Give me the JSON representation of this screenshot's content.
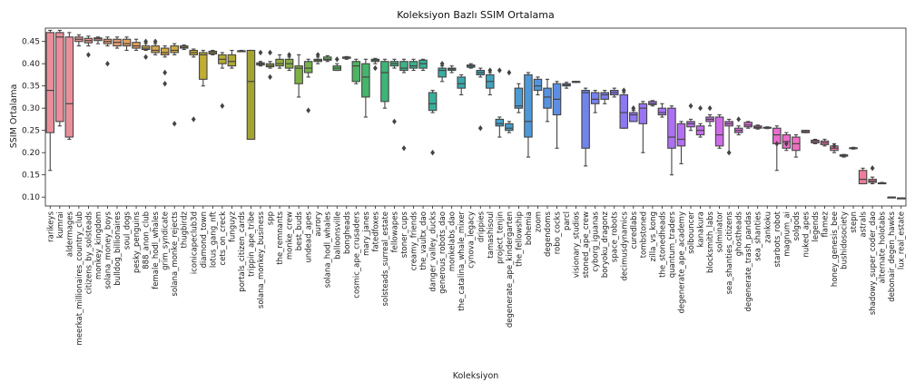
{
  "chart_data": {
    "type": "box",
    "title": "Koleksiyon Bazlı SSIM Ortalama",
    "xlabel": "Koleksiyon",
    "ylabel": "SSIM Ortalama",
    "ylim": [
      0.08,
      0.48
    ],
    "yticks": [
      0.1,
      0.15,
      0.2,
      0.25,
      0.3,
      0.35,
      0.4,
      0.45
    ],
    "ytick_labels": [
      "0.10",
      "0.15",
      "0.20",
      "0.25",
      "0.30",
      "0.35",
      "0.40",
      "0.45"
    ],
    "grid": false,
    "categories": [
      "rarikeys",
      "kumrai",
      "aldermages",
      "meerkat_millionaires_country_club",
      "citizens_by_solsteads",
      "monkey_kingdom",
      "solana_money_boys",
      "bulldog_billionaires",
      "soul_dogs",
      "pesky_penguins",
      "888_anon_club",
      "female_hodl_whales",
      "grim_syndicate",
      "solana_monke_rejects",
      "thugbirdz",
      "iconicapeclub3d",
      "diamond_town",
      "lotus_gang_nft",
      "cets_on_creck",
      "funguyz",
      "portals_citizen_cards",
      "trippin_ape_tribe",
      "solana_monkey_business",
      "spp",
      "the_remnants",
      "monke_crew",
      "best_buds",
      "undead_apes",
      "aurory",
      "solana_hodl_whales",
      "balloonsville",
      "bongheads",
      "cosmic_ape_crusaders",
      "mary_janes",
      "fatedfoxes",
      "solsteads_surreal_estate",
      "fellowapes",
      "stoner_cups",
      "creamy_friends",
      "the_vaultx_dao",
      "danger_valley_ducks",
      "generous_robots_dao",
      "monkelabs_dao",
      "the_catalina_whale_mixer",
      "cynova_legacy",
      "drippies",
      "tamashisoul",
      "project_tenjin",
      "degenerate_ape_kindergarten",
      "the_fellowship",
      "bohemia",
      "zoom",
      "degendoms",
      "robo_cocks",
      "parcl",
      "visionary_studios",
      "stoned_ape_crew",
      "cyborg_iguanas",
      "boryoku_dragonz",
      "space_robots",
      "decimusdynamics",
      "curedlabs",
      "tombstoned",
      "zilla_vs_kong",
      "the_stonedheads",
      "quantum_traders",
      "degenerate_ape_academy",
      "solbouncer",
      "kanakura",
      "blocksmith_labs",
      "solminator",
      "sea_shanties_citizens",
      "ghostheads",
      "degenerate_trash_pandas",
      "sea_shanties",
      "zankoku",
      "starbots_robot",
      "magnum_ai",
      "solgods",
      "nuked_apes",
      "legends",
      "flamez",
      "honey_genesis_bee",
      "bushidosociety",
      "stepn",
      "astrals",
      "shadowy_super_coder_dao",
      "alternate_holotabs",
      "debonair_degen_hawks",
      "lux_real_estate"
    ],
    "boxes": [
      {
        "min": 0.16,
        "q1": 0.245,
        "median": 0.34,
        "q3": 0.47,
        "max": 0.475,
        "outliers": [],
        "color": "#ea8f9a"
      },
      {
        "min": 0.26,
        "q1": 0.27,
        "median": 0.46,
        "q3": 0.47,
        "max": 0.475,
        "outliers": [],
        "color": "#ea8f9a"
      },
      {
        "min": 0.23,
        "q1": 0.235,
        "median": 0.31,
        "q3": 0.46,
        "max": 0.47,
        "outliers": [],
        "color": "#ea8f9a"
      },
      {
        "min": 0.44,
        "q1": 0.45,
        "median": 0.455,
        "q3": 0.46,
        "max": 0.465,
        "outliers": [],
        "color": "#ec9688"
      },
      {
        "min": 0.44,
        "q1": 0.447,
        "median": 0.452,
        "q3": 0.457,
        "max": 0.462,
        "outliers": [
          0.42
        ],
        "color": "#ec9688"
      },
      {
        "min": 0.445,
        "q1": 0.452,
        "median": 0.456,
        "q3": 0.458,
        "max": 0.46,
        "outliers": [],
        "color": "#ec9688"
      },
      {
        "min": 0.44,
        "q1": 0.445,
        "median": 0.45,
        "q3": 0.455,
        "max": 0.46,
        "outliers": [
          0.4
        ],
        "color": "#e89a6e"
      },
      {
        "min": 0.435,
        "q1": 0.44,
        "median": 0.448,
        "q3": 0.455,
        "max": 0.46,
        "outliers": [],
        "color": "#e89a6e"
      },
      {
        "min": 0.43,
        "q1": 0.44,
        "median": 0.445,
        "q3": 0.455,
        "max": 0.46,
        "outliers": [],
        "color": "#e3a15c"
      },
      {
        "min": 0.43,
        "q1": 0.435,
        "median": 0.44,
        "q3": 0.448,
        "max": 0.455,
        "outliers": [],
        "color": "#e3a15c"
      },
      {
        "min": 0.43,
        "q1": 0.432,
        "median": 0.435,
        "q3": 0.44,
        "max": 0.445,
        "outliers": [
          0.45,
          0.415
        ],
        "color": "#d9a64b"
      },
      {
        "min": 0.42,
        "q1": 0.425,
        "median": 0.43,
        "q3": 0.44,
        "max": 0.445,
        "outliers": [
          0.45
        ],
        "color": "#d9a64b"
      },
      {
        "min": 0.415,
        "q1": 0.42,
        "median": 0.425,
        "q3": 0.435,
        "max": 0.44,
        "outliers": [
          0.355,
          0.38
        ],
        "color": "#d4a940"
      },
      {
        "min": 0.42,
        "q1": 0.425,
        "median": 0.43,
        "q3": 0.44,
        "max": 0.445,
        "outliers": [
          0.265
        ],
        "color": "#d4a940"
      },
      {
        "min": 0.432,
        "q1": 0.435,
        "median": 0.437,
        "q3": 0.44,
        "max": 0.442,
        "outliers": [],
        "color": "#cdab38"
      },
      {
        "min": 0.415,
        "q1": 0.42,
        "median": 0.425,
        "q3": 0.43,
        "max": 0.433,
        "outliers": [
          0.275
        ],
        "color": "#c8ac34"
      },
      {
        "min": 0.35,
        "q1": 0.365,
        "median": 0.42,
        "q3": 0.425,
        "max": 0.43,
        "outliers": [],
        "color": "#c2ad33"
      },
      {
        "min": 0.42,
        "q1": 0.422,
        "median": 0.425,
        "q3": 0.428,
        "max": 0.43,
        "outliers": [],
        "color": "#bcad32"
      },
      {
        "min": 0.39,
        "q1": 0.4,
        "median": 0.41,
        "q3": 0.42,
        "max": 0.425,
        "outliers": [
          0.305
        ],
        "color": "#b5ac31"
      },
      {
        "min": 0.39,
        "q1": 0.395,
        "median": 0.405,
        "q3": 0.42,
        "max": 0.43,
        "outliers": [],
        "color": "#adaa31"
      },
      {
        "min": 0.428,
        "q1": 0.428,
        "median": 0.429,
        "q3": 0.429,
        "max": 0.43,
        "outliers": [],
        "color": "#a6a831"
      },
      {
        "min": 0.23,
        "q1": 0.23,
        "median": 0.36,
        "q3": 0.43,
        "max": 0.43,
        "outliers": [],
        "color": "#a3a332"
      },
      {
        "min": 0.395,
        "q1": 0.397,
        "median": 0.4,
        "q3": 0.402,
        "max": 0.405,
        "outliers": [
          0.425,
          0.4
        ],
        "color": "#9fa835"
      },
      {
        "min": 0.39,
        "q1": 0.393,
        "median": 0.396,
        "q3": 0.4,
        "max": 0.405,
        "outliers": [
          0.37,
          0.425
        ],
        "color": "#98ab38"
      },
      {
        "min": 0.39,
        "q1": 0.395,
        "median": 0.4,
        "q3": 0.41,
        "max": 0.42,
        "outliers": [],
        "color": "#8fad3c"
      },
      {
        "min": 0.385,
        "q1": 0.39,
        "median": 0.4,
        "q3": 0.41,
        "max": 0.415,
        "outliers": [
          0.42
        ],
        "color": "#87ae40"
      },
      {
        "min": 0.325,
        "q1": 0.355,
        "median": 0.39,
        "q3": 0.395,
        "max": 0.42,
        "outliers": [],
        "color": "#7fb044"
      },
      {
        "min": 0.37,
        "q1": 0.38,
        "median": 0.39,
        "q3": 0.405,
        "max": 0.41,
        "outliers": [
          0.295
        ],
        "color": "#77b148"
      },
      {
        "min": 0.4,
        "q1": 0.405,
        "median": 0.408,
        "q3": 0.41,
        "max": 0.415,
        "outliers": [
          0.42
        ],
        "color": "#6eb24d"
      },
      {
        "min": 0.405,
        "q1": 0.408,
        "median": 0.41,
        "q3": 0.415,
        "max": 0.418,
        "outliers": [],
        "color": "#64b352"
      },
      {
        "min": 0.385,
        "q1": 0.385,
        "median": 0.39,
        "q3": 0.395,
        "max": 0.4,
        "outliers": [
          0.41
        ],
        "color": "#5ab457"
      },
      {
        "min": 0.41,
        "q1": 0.412,
        "median": 0.413,
        "q3": 0.415,
        "max": 0.416,
        "outliers": [],
        "color": "#51b55d"
      },
      {
        "min": 0.355,
        "q1": 0.36,
        "median": 0.395,
        "q3": 0.405,
        "max": 0.41,
        "outliers": [],
        "color": "#4ab563"
      },
      {
        "min": 0.28,
        "q1": 0.325,
        "median": 0.37,
        "q3": 0.4,
        "max": 0.41,
        "outliers": [],
        "color": "#44b56a"
      },
      {
        "min": 0.4,
        "q1": 0.405,
        "median": 0.408,
        "q3": 0.41,
        "max": 0.412,
        "outliers": [
          0.39
        ],
        "color": "#40b571"
      },
      {
        "min": 0.3,
        "q1": 0.315,
        "median": 0.38,
        "q3": 0.405,
        "max": 0.41,
        "outliers": [],
        "color": "#3db578"
      },
      {
        "min": 0.39,
        "q1": 0.395,
        "median": 0.4,
        "q3": 0.405,
        "max": 0.41,
        "outliers": [
          0.27
        ],
        "color": "#3bb47f"
      },
      {
        "min": 0.38,
        "q1": 0.385,
        "median": 0.39,
        "q3": 0.405,
        "max": 0.41,
        "outliers": [
          0.21
        ],
        "color": "#3ab386"
      },
      {
        "min": 0.385,
        "q1": 0.39,
        "median": 0.395,
        "q3": 0.405,
        "max": 0.41,
        "outliers": [],
        "color": "#39b28d"
      },
      {
        "min": 0.385,
        "q1": 0.39,
        "median": 0.4,
        "q3": 0.408,
        "max": 0.41,
        "outliers": [],
        "color": "#38b094"
      },
      {
        "min": 0.29,
        "q1": 0.295,
        "median": 0.31,
        "q3": 0.335,
        "max": 0.34,
        "outliers": [
          0.2
        ],
        "color": "#38af9b"
      },
      {
        "min": 0.36,
        "q1": 0.37,
        "median": 0.385,
        "q3": 0.39,
        "max": 0.395,
        "outliers": [
          0.4
        ],
        "color": "#38ada2"
      },
      {
        "min": 0.38,
        "q1": 0.385,
        "median": 0.388,
        "q3": 0.39,
        "max": 0.395,
        "outliers": [],
        "color": "#39aba9"
      },
      {
        "min": 0.33,
        "q1": 0.345,
        "median": 0.355,
        "q3": 0.37,
        "max": 0.375,
        "outliers": [],
        "color": "#3aa9b0"
      },
      {
        "min": 0.39,
        "q1": 0.392,
        "median": 0.395,
        "q3": 0.397,
        "max": 0.4,
        "outliers": [],
        "color": "#3ca7b6"
      },
      {
        "min": 0.37,
        "q1": 0.375,
        "median": 0.38,
        "q3": 0.385,
        "max": 0.39,
        "outliers": [
          0.255
        ],
        "color": "#3ea5bc"
      },
      {
        "min": 0.33,
        "q1": 0.345,
        "median": 0.36,
        "q3": 0.375,
        "max": 0.38,
        "outliers": [
          0.385
        ],
        "color": "#41a3c2"
      },
      {
        "min": 0.235,
        "q1": 0.26,
        "median": 0.265,
        "q3": 0.275,
        "max": 0.28,
        "outliers": [
          0.385
        ],
        "color": "#44a0c8"
      },
      {
        "min": 0.245,
        "q1": 0.25,
        "median": 0.255,
        "q3": 0.265,
        "max": 0.27,
        "outliers": [
          0.38
        ],
        "color": "#479dcd"
      },
      {
        "min": 0.29,
        "q1": 0.3,
        "median": 0.305,
        "q3": 0.345,
        "max": 0.355,
        "outliers": [],
        "color": "#4a9bd2"
      },
      {
        "min": 0.19,
        "q1": 0.235,
        "median": 0.27,
        "q3": 0.375,
        "max": 0.38,
        "outliers": [],
        "color": "#4e98d7"
      },
      {
        "min": 0.33,
        "q1": 0.34,
        "median": 0.35,
        "q3": 0.365,
        "max": 0.37,
        "outliers": [],
        "color": "#5295db"
      },
      {
        "min": 0.27,
        "q1": 0.3,
        "median": 0.325,
        "q3": 0.345,
        "max": 0.365,
        "outliers": [],
        "color": "#5792df"
      },
      {
        "min": 0.21,
        "q1": 0.285,
        "median": 0.32,
        "q3": 0.355,
        "max": 0.36,
        "outliers": [],
        "color": "#5c8fe3"
      },
      {
        "min": 0.345,
        "q1": 0.35,
        "median": 0.352,
        "q3": 0.355,
        "max": 0.358,
        "outliers": [],
        "color": "#628be6"
      },
      {
        "min": 0.358,
        "q1": 0.359,
        "median": 0.36,
        "q3": 0.36,
        "max": 0.36,
        "outliers": [],
        "color": "#6888e9"
      },
      {
        "min": 0.17,
        "q1": 0.21,
        "median": 0.335,
        "q3": 0.34,
        "max": 0.345,
        "outliers": [],
        "color": "#6f84ec"
      },
      {
        "min": 0.29,
        "q1": 0.31,
        "median": 0.32,
        "q3": 0.335,
        "max": 0.34,
        "outliers": [],
        "color": "#7681ee"
      },
      {
        "min": 0.31,
        "q1": 0.32,
        "median": 0.33,
        "q3": 0.335,
        "max": 0.34,
        "outliers": [],
        "color": "#7d7ef0"
      },
      {
        "min": 0.325,
        "q1": 0.33,
        "median": 0.335,
        "q3": 0.34,
        "max": 0.345,
        "outliers": [],
        "color": "#847bf2"
      },
      {
        "min": 0.255,
        "q1": 0.255,
        "median": 0.29,
        "q3": 0.33,
        "max": 0.335,
        "outliers": [
          0.34
        ],
        "color": "#8b79f3"
      },
      {
        "min": 0.27,
        "q1": 0.27,
        "median": 0.285,
        "q3": 0.29,
        "max": 0.295,
        "outliers": [
          0.3
        ],
        "color": "#9277f4"
      },
      {
        "min": 0.2,
        "q1": 0.265,
        "median": 0.3,
        "q3": 0.31,
        "max": 0.315,
        "outliers": [],
        "color": "#9975f4"
      },
      {
        "min": 0.305,
        "q1": 0.308,
        "median": 0.31,
        "q3": 0.315,
        "max": 0.317,
        "outliers": [],
        "color": "#a073f4"
      },
      {
        "min": 0.28,
        "q1": 0.285,
        "median": 0.29,
        "q3": 0.3,
        "max": 0.31,
        "outliers": [],
        "color": "#a772f4"
      },
      {
        "min": 0.15,
        "q1": 0.21,
        "median": 0.235,
        "q3": 0.3,
        "max": 0.305,
        "outliers": [],
        "color": "#ae70f3"
      },
      {
        "min": 0.175,
        "q1": 0.215,
        "median": 0.23,
        "q3": 0.265,
        "max": 0.27,
        "outliers": [],
        "color": "#b56ff2"
      },
      {
        "min": 0.25,
        "q1": 0.258,
        "median": 0.265,
        "q3": 0.27,
        "max": 0.275,
        "outliers": [
          0.305
        ],
        "color": "#bc6ef0"
      },
      {
        "min": 0.235,
        "q1": 0.24,
        "median": 0.25,
        "q3": 0.26,
        "max": 0.265,
        "outliers": [
          0.3
        ],
        "color": "#c36dee"
      },
      {
        "min": 0.26,
        "q1": 0.27,
        "median": 0.275,
        "q3": 0.28,
        "max": 0.285,
        "outliers": [
          0.3
        ],
        "color": "#c96cec"
      },
      {
        "min": 0.21,
        "q1": 0.215,
        "median": 0.24,
        "q3": 0.28,
        "max": 0.285,
        "outliers": [],
        "color": "#cf6be9"
      },
      {
        "min": 0.2,
        "q1": 0.26,
        "median": 0.265,
        "q3": 0.27,
        "max": 0.275,
        "outliers": [
          0.2
        ],
        "color": "#d56be6"
      },
      {
        "min": 0.24,
        "q1": 0.245,
        "median": 0.25,
        "q3": 0.255,
        "max": 0.26,
        "outliers": [
          0.275
        ],
        "color": "#da6ae2"
      },
      {
        "min": 0.255,
        "q1": 0.258,
        "median": 0.262,
        "q3": 0.268,
        "max": 0.27,
        "outliers": [],
        "color": "#df6ade"
      },
      {
        "min": 0.253,
        "q1": 0.255,
        "median": 0.257,
        "q3": 0.26,
        "max": 0.262,
        "outliers": [],
        "color": "#e36bd9"
      },
      {
        "min": 0.254,
        "q1": 0.255,
        "median": 0.256,
        "q3": 0.257,
        "max": 0.258,
        "outliers": [],
        "color": "#e76bd4"
      },
      {
        "min": 0.16,
        "q1": 0.22,
        "median": 0.24,
        "q3": 0.255,
        "max": 0.26,
        "outliers": [
          0.22
        ],
        "color": "#ea6ccf"
      },
      {
        "min": 0.205,
        "q1": 0.21,
        "median": 0.225,
        "q3": 0.24,
        "max": 0.245,
        "outliers": [
          0.22
        ],
        "color": "#ec6dc9"
      },
      {
        "min": 0.19,
        "q1": 0.205,
        "median": 0.22,
        "q3": 0.235,
        "max": 0.24,
        "outliers": [],
        "color": "#ee6fc3"
      },
      {
        "min": 0.245,
        "q1": 0.245,
        "median": 0.247,
        "q3": 0.25,
        "max": 0.25,
        "outliers": [],
        "color": "#ef71bd"
      },
      {
        "min": 0.22,
        "q1": 0.222,
        "median": 0.225,
        "q3": 0.228,
        "max": 0.23,
        "outliers": [],
        "color": "#f073b7"
      },
      {
        "min": 0.215,
        "q1": 0.218,
        "median": 0.222,
        "q3": 0.226,
        "max": 0.23,
        "outliers": [],
        "color": "#f075b1"
      },
      {
        "min": 0.2,
        "q1": 0.205,
        "median": 0.21,
        "q3": 0.215,
        "max": 0.22,
        "outliers": [
          0.215
        ],
        "color": "#f078ab"
      },
      {
        "min": 0.19,
        "q1": 0.192,
        "median": 0.193,
        "q3": 0.195,
        "max": 0.196,
        "outliers": [],
        "color": "#ef7aa6"
      },
      {
        "min": 0.208,
        "q1": 0.209,
        "median": 0.21,
        "q3": 0.211,
        "max": 0.212,
        "outliers": [],
        "color": "#ee7ca1"
      },
      {
        "min": 0.13,
        "q1": 0.13,
        "median": 0.14,
        "q3": 0.16,
        "max": 0.165,
        "outliers": [],
        "color": "#ec7e9c"
      },
      {
        "min": 0.13,
        "q1": 0.133,
        "median": 0.136,
        "q3": 0.14,
        "max": 0.145,
        "outliers": [
          0.165
        ],
        "color": "#ea8098"
      },
      {
        "min": 0.13,
        "q1": 0.13,
        "median": 0.131,
        "q3": 0.132,
        "max": 0.133,
        "outliers": [],
        "color": "#e88294"
      },
      {
        "min": 0.1,
        "q1": 0.1,
        "median": 0.1,
        "q3": 0.1,
        "max": 0.1,
        "outliers": [],
        "color": "#e68490"
      },
      {
        "min": 0.098,
        "q1": 0.098,
        "median": 0.098,
        "q3": 0.098,
        "max": 0.098,
        "outliers": [],
        "color": "#e4868c"
      }
    ]
  }
}
